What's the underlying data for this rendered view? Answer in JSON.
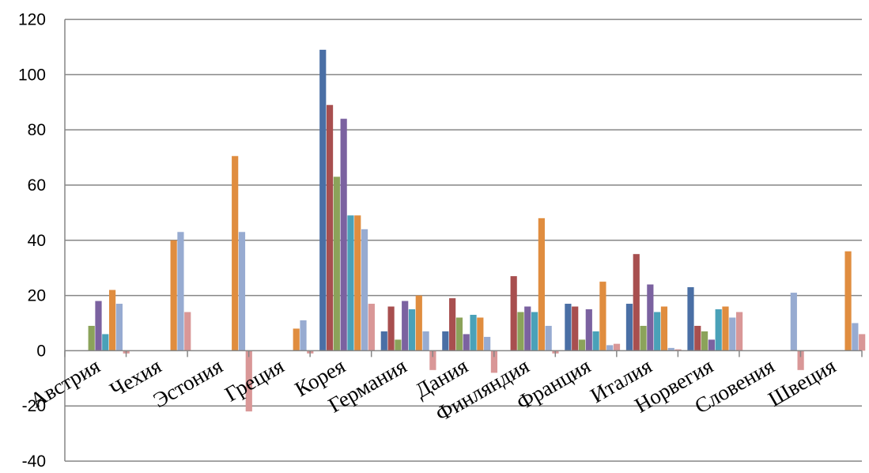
{
  "chart_data": {
    "type": "bar",
    "title": "",
    "xlabel": "",
    "ylabel": "",
    "ylim": [
      -40,
      120
    ],
    "yticks": [
      120,
      100,
      80,
      60,
      40,
      20,
      0,
      -20,
      -40
    ],
    "grid": true,
    "legend": "none",
    "categories": [
      "Австрия",
      "Чехия",
      "Эстония",
      "Греция",
      "Корея",
      "Германия",
      "Дания",
      "Финляндия",
      "Франция",
      "Италия",
      "Норвегия",
      "Словения",
      "Швеция"
    ],
    "series": [
      {
        "color": "#4a6fa5",
        "values": [
          0,
          0,
          0,
          0,
          109,
          7,
          7,
          0,
          17,
          17,
          23,
          0,
          0
        ]
      },
      {
        "color": "#a84f4f",
        "values": [
          0,
          0,
          0,
          0,
          89,
          16,
          19,
          27,
          16,
          35,
          9,
          0,
          0
        ]
      },
      {
        "color": "#8ba35a",
        "values": [
          9,
          0,
          0,
          0,
          63,
          4,
          12,
          14,
          4,
          9,
          7,
          0,
          0
        ]
      },
      {
        "color": "#7b62a0",
        "values": [
          18,
          0,
          0,
          0,
          84,
          18,
          6,
          16,
          15,
          24,
          4,
          0,
          0
        ]
      },
      {
        "color": "#4aa1b8",
        "values": [
          6,
          0,
          0,
          0,
          49,
          15,
          13,
          14,
          7,
          14,
          15,
          0,
          0
        ]
      },
      {
        "color": "#e08d3f",
        "values": [
          22,
          40,
          70.5,
          8,
          49,
          20,
          12,
          48,
          25,
          16,
          16,
          0,
          36
        ]
      },
      {
        "color": "#97abd1",
        "values": [
          17,
          43,
          43,
          11,
          44,
          7,
          5,
          9,
          2,
          1,
          12,
          21,
          10
        ]
      },
      {
        "color": "#d99797",
        "values": [
          -1,
          14,
          -22,
          -1,
          17,
          -7,
          -8,
          -1,
          2.5,
          0.5,
          14,
          -7,
          6
        ]
      }
    ]
  }
}
